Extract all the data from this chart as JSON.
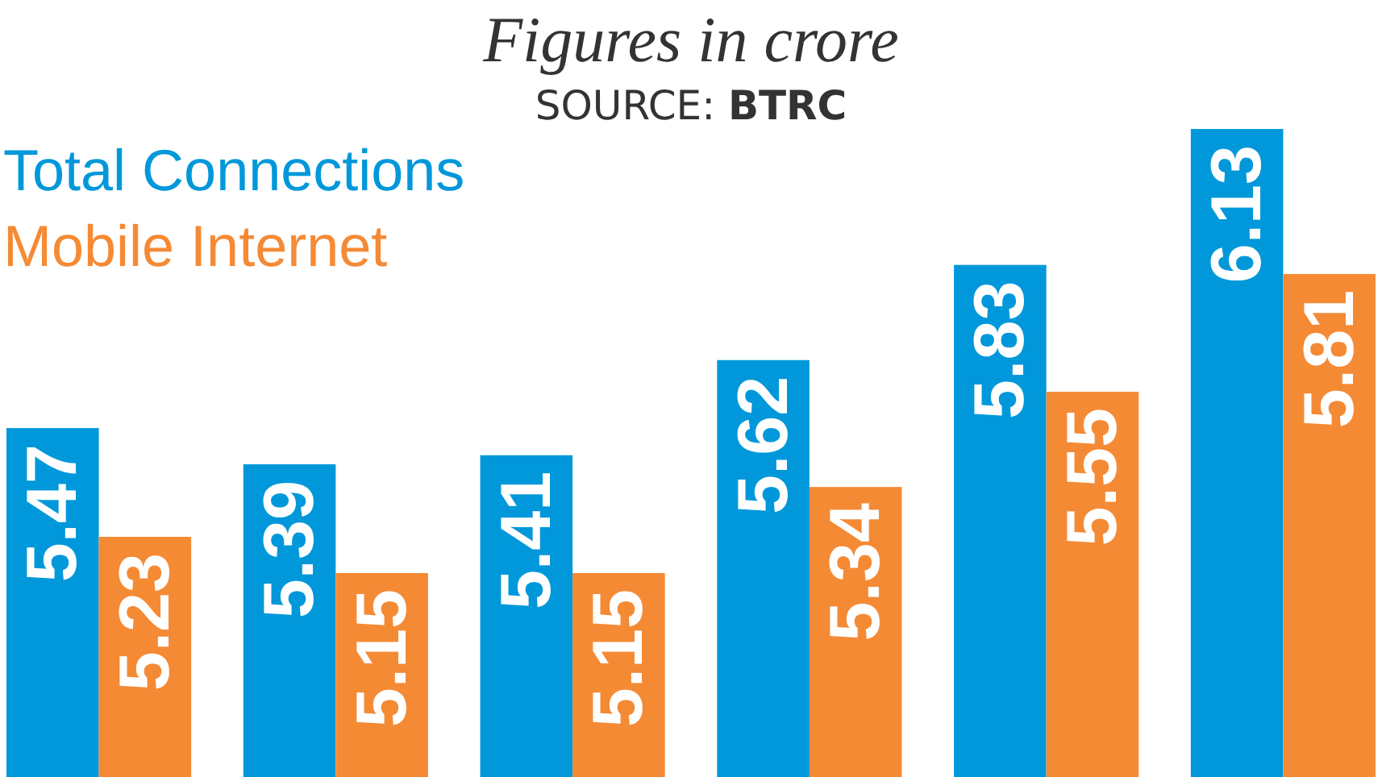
{
  "chart_data": {
    "type": "bar",
    "title": "Figures in crore",
    "annotations": [
      "SOURCE: BTRC"
    ],
    "categories": [
      null,
      null,
      null,
      null,
      null,
      null
    ],
    "series": [
      {
        "name": "Total Connections",
        "color": "#0098da",
        "values": [
          5.47,
          5.39,
          5.41,
          5.62,
          5.83,
          6.13
        ]
      },
      {
        "name": "Mobile Internet",
        "color": "#f58a35",
        "values": [
          5.23,
          5.15,
          5.15,
          5.34,
          5.55,
          5.81
        ]
      }
    ],
    "ylim": [
      4.7,
      6.13
    ],
    "data_labels": true,
    "legend": "top left"
  }
}
